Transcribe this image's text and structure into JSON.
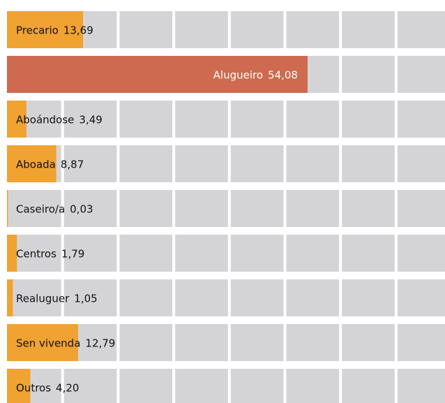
{
  "chart_data": {
    "type": "bar",
    "orientation": "horizontal",
    "categories": [
      "Precario",
      "Alugueiro",
      "Aboándose",
      "Aboada",
      "Caseiro/a",
      "Centros",
      "Realuguer",
      "Sen vivenda",
      "Outros"
    ],
    "values": [
      13.69,
      54.08,
      3.49,
      8.87,
      0.03,
      1.79,
      1.05,
      12.79,
      4.2
    ],
    "value_labels": [
      "13,69",
      "54,08",
      "3,49",
      "8,87",
      "0,03",
      "1,79",
      "1,05",
      "12,79",
      "4,20"
    ],
    "colors": [
      "#f0a232",
      "#cd6a4f",
      "#f0a232",
      "#f0a232",
      "#f0a232",
      "#f0a232",
      "#f0a232",
      "#f0a232",
      "#f0a232"
    ],
    "background_color": "#d4d4d6",
    "xlim": [
      0,
      78.8
    ],
    "xticks": [
      0,
      10,
      20,
      30,
      40,
      50,
      60,
      70
    ],
    "grid": true
  }
}
